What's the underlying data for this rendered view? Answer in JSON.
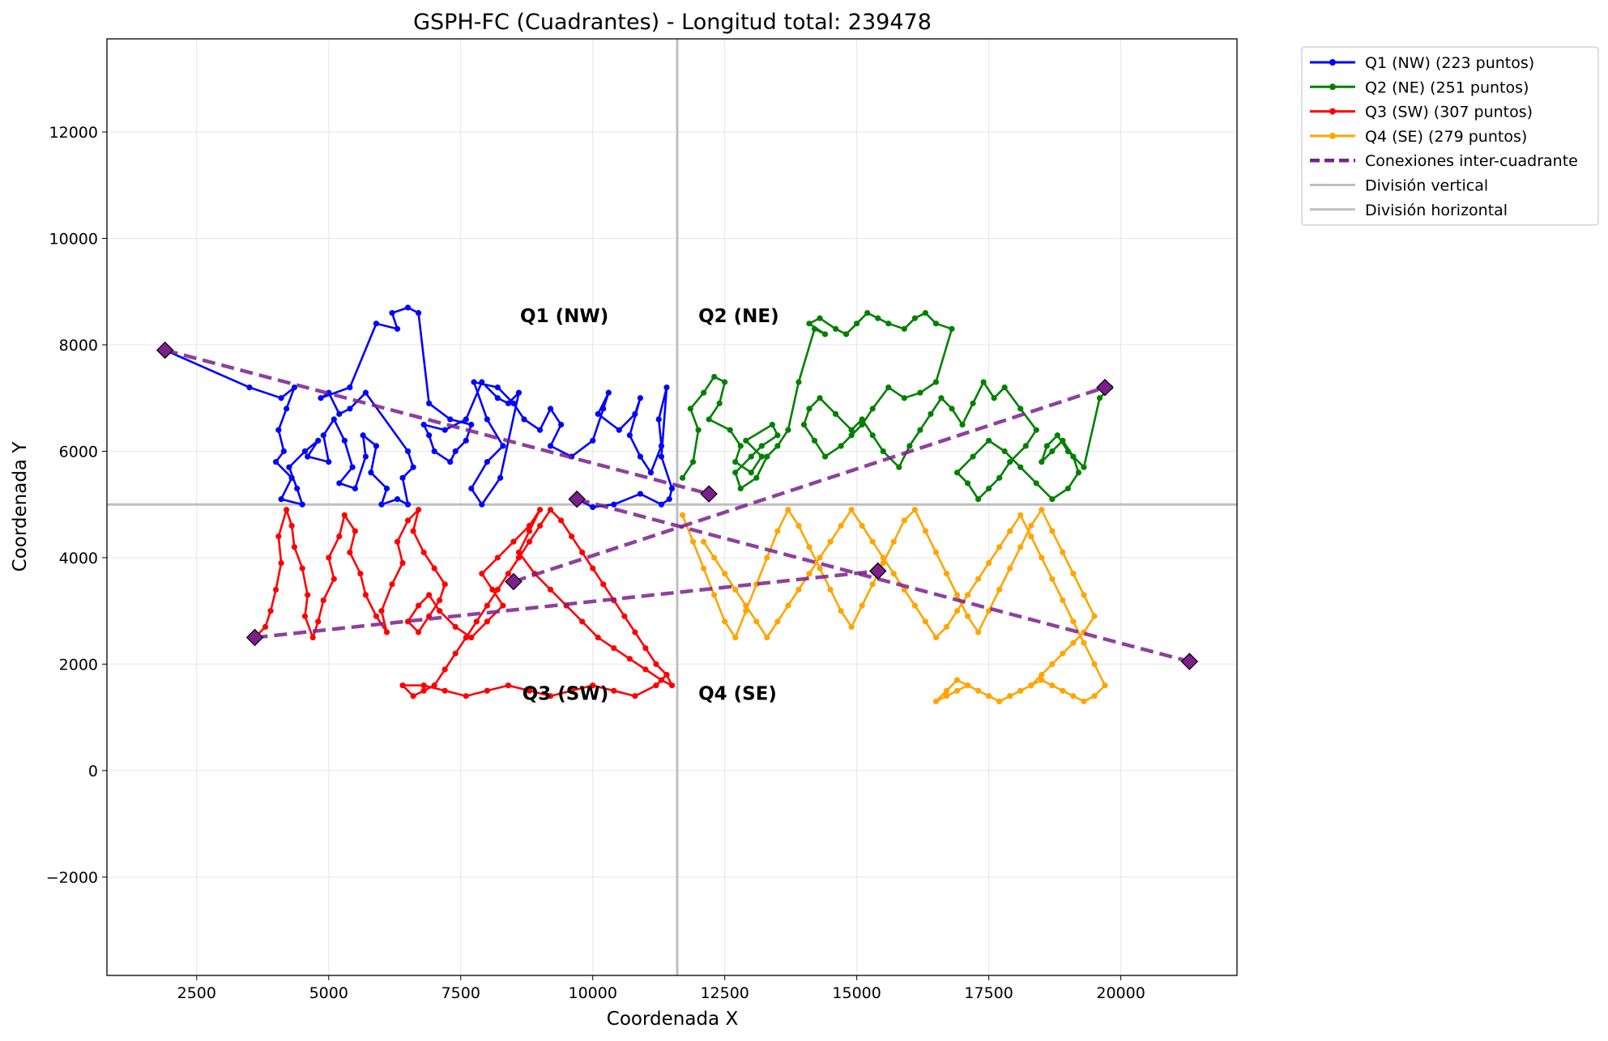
{
  "chart_data": {
    "type": "line",
    "title": "GSPH-FC (Cuadrantes) - Longitud total: 239478",
    "xlabel": "Coordenada X",
    "ylabel": "Coordenada Y",
    "xlim": [
      800,
      22200
    ],
    "ylim": [
      -3850,
      13750
    ],
    "xticks": [
      2500,
      5000,
      7500,
      10000,
      12500,
      15000,
      17500,
      20000
    ],
    "yticks": [
      -2000,
      0,
      2000,
      4000,
      6000,
      8000,
      10000,
      12000
    ],
    "ytick_labels": [
      "−2000",
      "0",
      "2000",
      "4000",
      "6000",
      "8000",
      "10000",
      "12000"
    ],
    "grid": true,
    "legend_position": "outside-top-right",
    "division_x": 11600,
    "division_y": 5000,
    "quadrant_labels": [
      {
        "text": "Q1 (NW)",
        "x": 10300,
        "y": 8550
      },
      {
        "text": "Q2 (NE)",
        "x": 12000,
        "y": 8550
      },
      {
        "text": "Q3 (SW)",
        "x": 10300,
        "y": 1450
      },
      {
        "text": "Q4 (SE)",
        "x": 12000,
        "y": 1450
      }
    ],
    "series": [
      {
        "name": "Q1 (NW) (223 puntos)",
        "color": "#0000ff",
        "x": [
          1900,
          3500,
          4100,
          4350,
          4200,
          4050,
          4150,
          4000,
          4300,
          4100,
          4500,
          4400,
          4250,
          4550,
          4800,
          4600,
          5000,
          4900,
          5100,
          5300,
          5450,
          5200,
          5500,
          5700,
          5650,
          5900,
          5800,
          6100,
          6000,
          6300,
          6500,
          6400,
          6600,
          6500,
          5700,
          5400,
          5200,
          5000,
          4850,
          5400,
          5900,
          6300,
          6200,
          6500,
          6700,
          6900,
          7300,
          7700,
          7600,
          7400,
          7300,
          7000,
          6900,
          6800,
          7200,
          7600,
          7900,
          8200,
          8400,
          8600,
          8250,
          7900,
          7700,
          8000,
          8300,
          8000,
          7750,
          8200,
          8500,
          8700,
          9000,
          9200,
          9400,
          9200,
          9600,
          10000,
          10200,
          10300,
          10100,
          10500,
          10800,
          10900,
          10700,
          10900,
          11100,
          11300,
          11250,
          11400,
          11300,
          11500,
          11450,
          11300,
          10900,
          10400,
          10000,
          9700
        ],
        "y": [
          7900,
          7200,
          7000,
          7200,
          6800,
          6400,
          6000,
          5800,
          5500,
          5100,
          5000,
          5300,
          5700,
          6000,
          6200,
          5900,
          5800,
          6300,
          6600,
          6200,
          5700,
          5400,
          5300,
          5900,
          6300,
          6100,
          5600,
          5300,
          5000,
          5100,
          5000,
          5500,
          5700,
          6000,
          7100,
          6800,
          6700,
          7100,
          7000,
          7200,
          8400,
          8300,
          8600,
          8700,
          8600,
          6900,
          6600,
          6500,
          6200,
          6000,
          5800,
          6000,
          6300,
          6500,
          6400,
          6600,
          7300,
          7000,
          6900,
          7100,
          5500,
          5000,
          5300,
          5800,
          6100,
          6600,
          7300,
          7200,
          6900,
          6600,
          6400,
          6800,
          6500,
          6100,
          5900,
          6200,
          6800,
          7100,
          6700,
          6400,
          6700,
          7000,
          6300,
          5900,
          5600,
          6100,
          6600,
          7200,
          5900,
          5300,
          5100,
          5000,
          5200,
          5000,
          4950,
          5100
        ]
      },
      {
        "name": "Q2 (NE)",
        "color": "#008000",
        "x": [
          11700,
          11900,
          12000,
          11850,
          12100,
          12300,
          12500,
          12400,
          12200,
          12600,
          12800,
          12700,
          13000,
          13200,
          12900,
          13400,
          13500,
          13200,
          13000,
          12700,
          12800,
          13100,
          13300,
          13500,
          13700,
          13900,
          14200,
          14400,
          14100,
          14300,
          14600,
          14800,
          15000,
          15200,
          15400,
          15600,
          15900,
          16100,
          16300,
          16500,
          16800,
          16500,
          16200,
          15900,
          15600,
          15300,
          15100,
          14900,
          14700,
          14400,
          14200,
          14000,
          14100,
          14300,
          14600,
          14900,
          15100,
          15300,
          15500,
          15800,
          16000,
          16200,
          16400,
          16600,
          16800,
          17000,
          17200,
          17400,
          17600,
          17800,
          18100,
          18400,
          18200,
          17900,
          17700,
          17500,
          17300,
          17100,
          16900,
          17200,
          17500,
          17800,
          18100,
          18400,
          18700,
          19000,
          19200,
          19100,
          18900,
          18700,
          18500,
          18600,
          18800,
          19000,
          19300,
          19600,
          19800
        ],
        "y": [
          5500,
          5800,
          6400,
          6800,
          7100,
          7400,
          7300,
          6900,
          6600,
          6400,
          6100,
          5800,
          5600,
          5900,
          6200,
          6500,
          6300,
          6100,
          5900,
          5600,
          5300,
          5500,
          5900,
          6100,
          6400,
          7300,
          8300,
          8200,
          8400,
          8500,
          8300,
          8200,
          8400,
          8600,
          8500,
          8400,
          8300,
          8500,
          8600,
          8400,
          8300,
          7300,
          7100,
          7000,
          7200,
          6800,
          6500,
          6300,
          6100,
          5900,
          6200,
          6500,
          6800,
          7000,
          6700,
          6400,
          6600,
          6300,
          6000,
          5700,
          6100,
          6400,
          6700,
          7000,
          6800,
          6500,
          6900,
          7300,
          7000,
          7200,
          6800,
          6400,
          6100,
          5800,
          5500,
          5300,
          5100,
          5400,
          5600,
          5900,
          6200,
          6000,
          5700,
          5400,
          5100,
          5300,
          5600,
          5900,
          6200,
          6000,
          5800,
          6100,
          6300,
          6000,
          5700,
          7000,
          7200
        ]
      },
      {
        "name": "Q3 (SW) (307 puntos)",
        "color": "#ff0000",
        "x": [
          3600,
          3800,
          3900,
          4000,
          4100,
          4050,
          4200,
          4300,
          4350,
          4500,
          4600,
          4550,
          4700,
          4800,
          4900,
          5100,
          5000,
          5200,
          5300,
          5500,
          5400,
          5600,
          5700,
          5900,
          6100,
          6000,
          6200,
          6400,
          6300,
          6500,
          6700,
          6600,
          6800,
          7000,
          7200,
          7100,
          6900,
          6700,
          6500,
          6700,
          6900,
          7100,
          7400,
          7700,
          8000,
          8300,
          8100,
          7900,
          8200,
          8500,
          8800,
          9000,
          8800,
          8600,
          8900,
          9200,
          9500,
          9800,
          10100,
          10400,
          10700,
          11000,
          11300,
          11500,
          11400,
          11200,
          11000,
          10800,
          10600,
          10400,
          10200,
          10000,
          9800,
          9600,
          9400,
          9200,
          9000,
          8800,
          8600,
          8400,
          8200,
          8000,
          7800,
          7600,
          7400,
          7200,
          7000,
          6800,
          6600,
          6400,
          6800,
          7200,
          7600,
          8000,
          8400,
          8800,
          9200,
          9600,
          10000,
          10400,
          10800,
          11200,
          11400
        ],
        "y": [
          2500,
          2700,
          3000,
          3400,
          3900,
          4400,
          4900,
          4600,
          4200,
          3800,
          3300,
          2900,
          2500,
          2800,
          3200,
          3600,
          4000,
          4400,
          4800,
          4500,
          4100,
          3700,
          3300,
          2900,
          2600,
          3000,
          3500,
          3900,
          4300,
          4700,
          4900,
          4500,
          4100,
          3800,
          3500,
          3200,
          2900,
          2600,
          2800,
          3100,
          3300,
          3000,
          2700,
          2500,
          2800,
          3100,
          3400,
          3700,
          4000,
          4300,
          4600,
          4900,
          4500,
          4100,
          3700,
          3400,
          3100,
          2800,
          2500,
          2300,
          2100,
          1900,
          1700,
          1600,
          1800,
          2000,
          2300,
          2600,
          2900,
          3200,
          3500,
          3800,
          4100,
          4400,
          4700,
          4900,
          4600,
          4300,
          4000,
          3700,
          3400,
          3100,
          2800,
          2500,
          2200,
          1900,
          1600,
          1500,
          1400,
          1600,
          1600,
          1500,
          1400,
          1500,
          1600,
          1500,
          1400,
          1500,
          1600,
          1500,
          1400,
          1600,
          1800
        ]
      },
      {
        "name": "Q4 (SE) (279 puntos)",
        "color": "#ffa500",
        "x": [
          11700,
          11900,
          12100,
          12300,
          12500,
          12700,
          12900,
          13100,
          13300,
          13500,
          13700,
          13900,
          14100,
          14300,
          14500,
          14700,
          14900,
          15100,
          15300,
          15500,
          15700,
          15900,
          16100,
          16300,
          16500,
          16700,
          16900,
          17100,
          17300,
          17500,
          17700,
          17900,
          18100,
          18300,
          18500,
          18700,
          18900,
          19100,
          19300,
          19500,
          19300,
          19100,
          18900,
          18700,
          18500,
          18300,
          18100,
          17900,
          17700,
          17500,
          17300,
          17100,
          16900,
          16700,
          16500,
          16700,
          16900,
          17100,
          17300,
          17500,
          17700,
          17900,
          18100,
          18300,
          18500,
          18700,
          18900,
          19100,
          19300,
          19500,
          19700,
          19500,
          19300,
          19100,
          18900,
          18700,
          18500,
          18300,
          18100,
          17900,
          17700,
          17500,
          17300,
          17100,
          16900,
          16700,
          16500,
          16300,
          16100,
          15900,
          15700,
          15500,
          15300,
          15100,
          14900,
          14700,
          14500,
          14300,
          14100,
          13900,
          13700,
          13500,
          13300,
          13100,
          12900,
          12700,
          12500,
          12300,
          12100
        ],
        "y": [
          4800,
          4300,
          3800,
          3300,
          2800,
          2500,
          3000,
          3500,
          4000,
          4500,
          4900,
          4600,
          4200,
          3800,
          3400,
          3000,
          2700,
          3100,
          3500,
          3900,
          4300,
          4700,
          4900,
          4500,
          4100,
          3700,
          3300,
          2900,
          2600,
          3000,
          3400,
          3800,
          4200,
          4600,
          4900,
          4500,
          4100,
          3700,
          3300,
          2900,
          2600,
          2400,
          2200,
          2000,
          1800,
          1600,
          1500,
          1400,
          1300,
          1400,
          1500,
          1600,
          1500,
          1400,
          1300,
          1500,
          1700,
          1600,
          1500,
          1400,
          1300,
          1400,
          1500,
          1600,
          1700,
          1600,
          1500,
          1400,
          1300,
          1400,
          1600,
          2000,
          2400,
          2800,
          3200,
          3600,
          4000,
          4400,
          4800,
          4500,
          4200,
          3900,
          3600,
          3300,
          3000,
          2700,
          2500,
          2800,
          3100,
          3400,
          3700,
          4000,
          4300,
          4600,
          4900,
          4600,
          4300,
          4000,
          3700,
          3400,
          3100,
          2800,
          2500,
          2800,
          3100,
          3400,
          3700,
          4000,
          4300
        ]
      }
    ],
    "connections": {
      "name": "Conexiones inter-cuadrante",
      "color": "#7b1f8c",
      "segments": [
        [
          [
            1900,
            7900
          ],
          [
            12200,
            5200
          ]
        ],
        [
          [
            8500,
            3550
          ],
          [
            19700,
            7200
          ]
        ],
        [
          [
            3600,
            2500
          ],
          [
            15400,
            3750
          ]
        ],
        [
          [
            9700,
            5100
          ],
          [
            21300,
            2050
          ]
        ]
      ],
      "markers": [
        {
          "x": 1900,
          "y": 7900
        },
        {
          "x": 19700,
          "y": 7200
        },
        {
          "x": 3600,
          "y": 2500
        },
        {
          "x": 21300,
          "y": 2050
        },
        {
          "x": 12200,
          "y": 5200
        },
        {
          "x": 8500,
          "y": 3550
        },
        {
          "x": 15400,
          "y": 3750
        },
        {
          "x": 9700,
          "y": 5100
        }
      ]
    },
    "legend": [
      {
        "label": "Q1 (NW) (223 puntos)",
        "color": "#0000ff",
        "style": "line-marker"
      },
      {
        "label": "Q2 (NE) (251 puntos)",
        "color": "#008000",
        "style": "line-marker"
      },
      {
        "label": "Q3 (SW) (307 puntos)",
        "color": "#ff0000",
        "style": "line-marker"
      },
      {
        "label": "Q4 (SE) (279 puntos)",
        "color": "#ffa500",
        "style": "line-marker"
      },
      {
        "label": "Conexiones inter-cuadrante",
        "color": "#7b1f8c",
        "style": "dashed"
      },
      {
        "label": "División vertical",
        "color": "#bfbfbf",
        "style": "solid"
      },
      {
        "label": "División horizontal",
        "color": "#bfbfbf",
        "style": "solid"
      }
    ]
  }
}
